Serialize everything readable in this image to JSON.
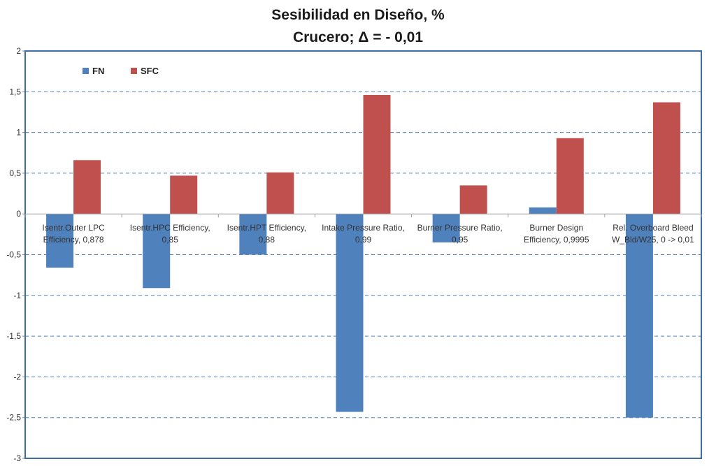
{
  "chart_data": {
    "type": "bar",
    "title_line1": "Sesibilidad en Diseño, %",
    "title_line2": "Crucero; Δ = - 0,01",
    "categories": [
      [
        "Isentr.Outer LPC",
        "Efficiency, 0,878"
      ],
      [
        "Isentr.HPC Efficiency,",
        "0,85"
      ],
      [
        "Isentr.HPT Efficiency,",
        "0,88"
      ],
      [
        "Intake Pressure Ratio,",
        "0,99"
      ],
      [
        "Burner Pressure Ratio,",
        "0,95"
      ],
      [
        "Burner Design",
        "Efficiency, 0,9995"
      ],
      [
        "Rel. Overboard Bleed",
        "W_Bld/W25, 0 -> 0,01"
      ]
    ],
    "series": [
      {
        "name": "FN",
        "color": "#4f81bd",
        "values": [
          -0.66,
          -0.91,
          -0.5,
          -2.43,
          -0.35,
          0.08,
          -2.5
        ]
      },
      {
        "name": "SFC",
        "color": "#c0504d",
        "values": [
          0.66,
          0.47,
          0.51,
          1.46,
          0.35,
          0.93,
          1.37
        ]
      }
    ],
    "ylim": [
      -3,
      2
    ],
    "yticks": [
      2,
      1.5,
      1,
      0.5,
      0,
      -0.5,
      -1,
      -1.5,
      -2,
      -2.5,
      -3
    ],
    "ytick_labels": [
      "2",
      "1,5",
      "1",
      "0,5",
      "0",
      "-0,5",
      "-1",
      "-1,5",
      "-2",
      "-2,5",
      "-3"
    ],
    "grid": "dashed horizontal",
    "legend_position": "top-left"
  }
}
